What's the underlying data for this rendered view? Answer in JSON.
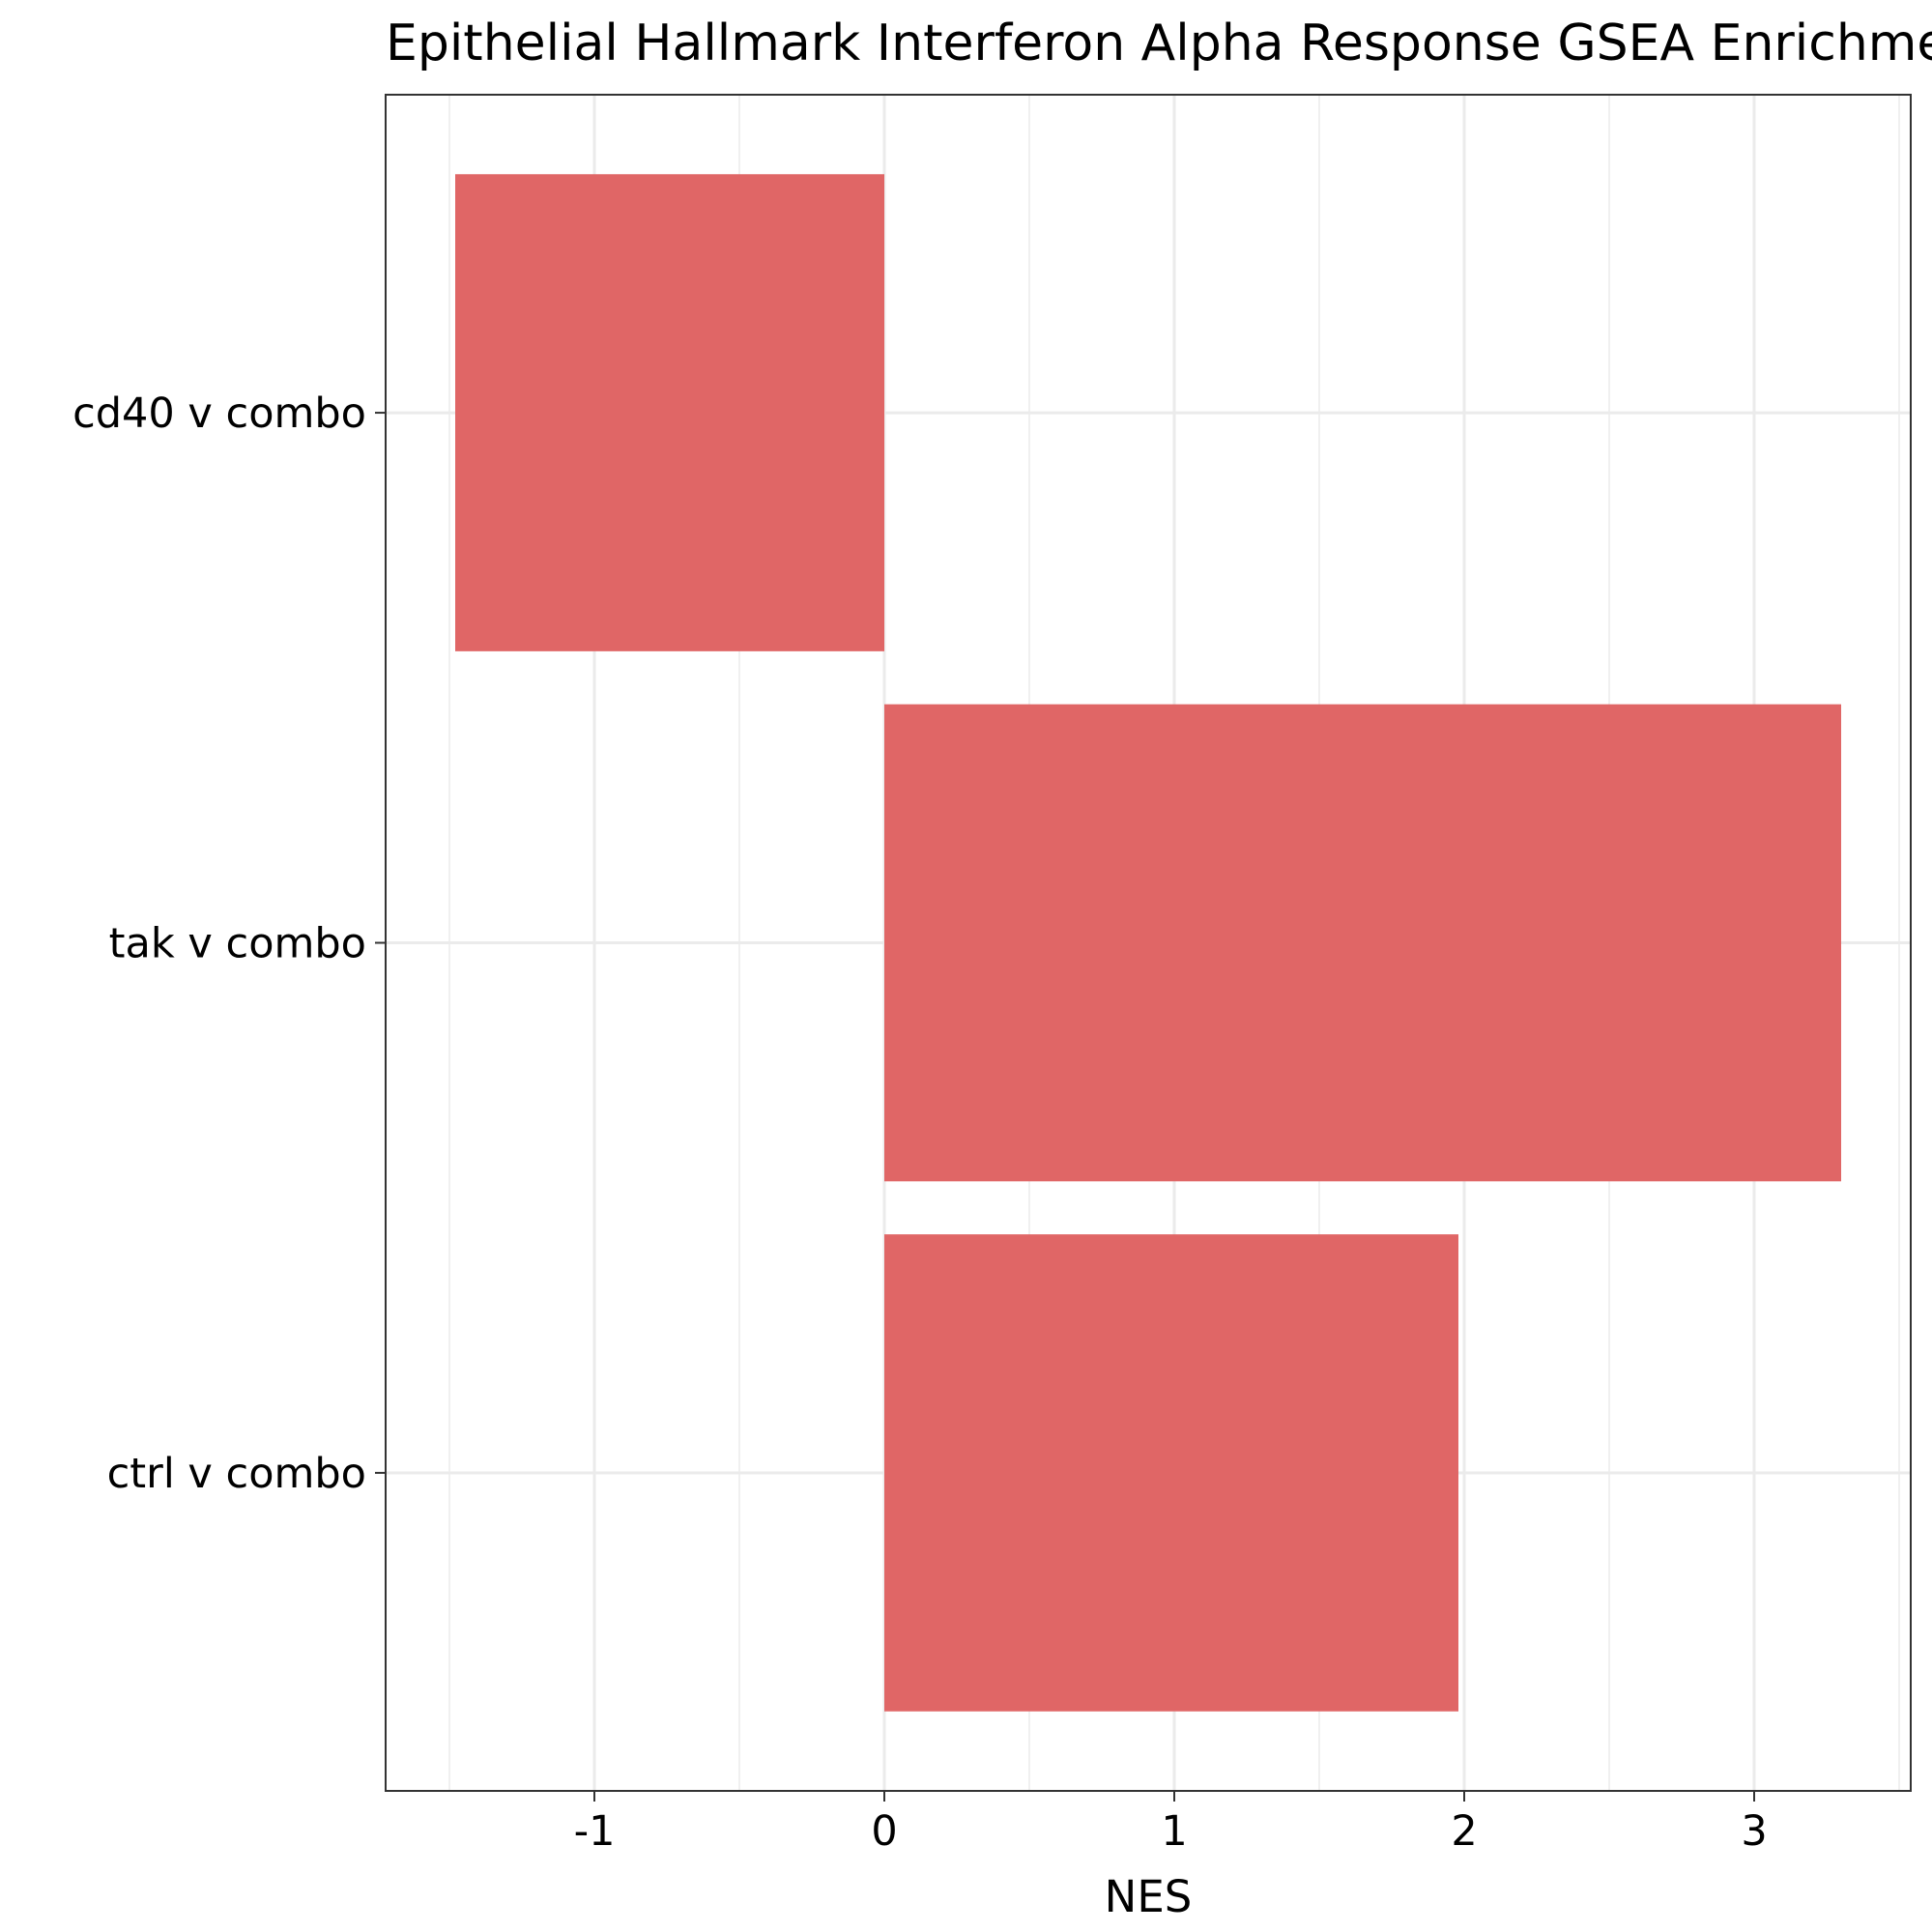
{
  "chart_data": {
    "type": "bar",
    "orientation": "horizontal",
    "title": "Epithelial Hallmark Interferon Alpha Response GSEA Enrichment",
    "xlabel": "NES",
    "ylabel": "",
    "categories": [
      "cd40 v combo",
      "tak v combo",
      "ctrl v combo"
    ],
    "values": [
      -1.48,
      3.3,
      1.98
    ],
    "xlim": [
      -1.72,
      3.54
    ],
    "xticks": [
      -1,
      0,
      1,
      2,
      3
    ],
    "xtick_labels": [
      "-1",
      "0",
      "1",
      "2",
      "3"
    ],
    "grid": true,
    "bar_color": "#E06666"
  }
}
